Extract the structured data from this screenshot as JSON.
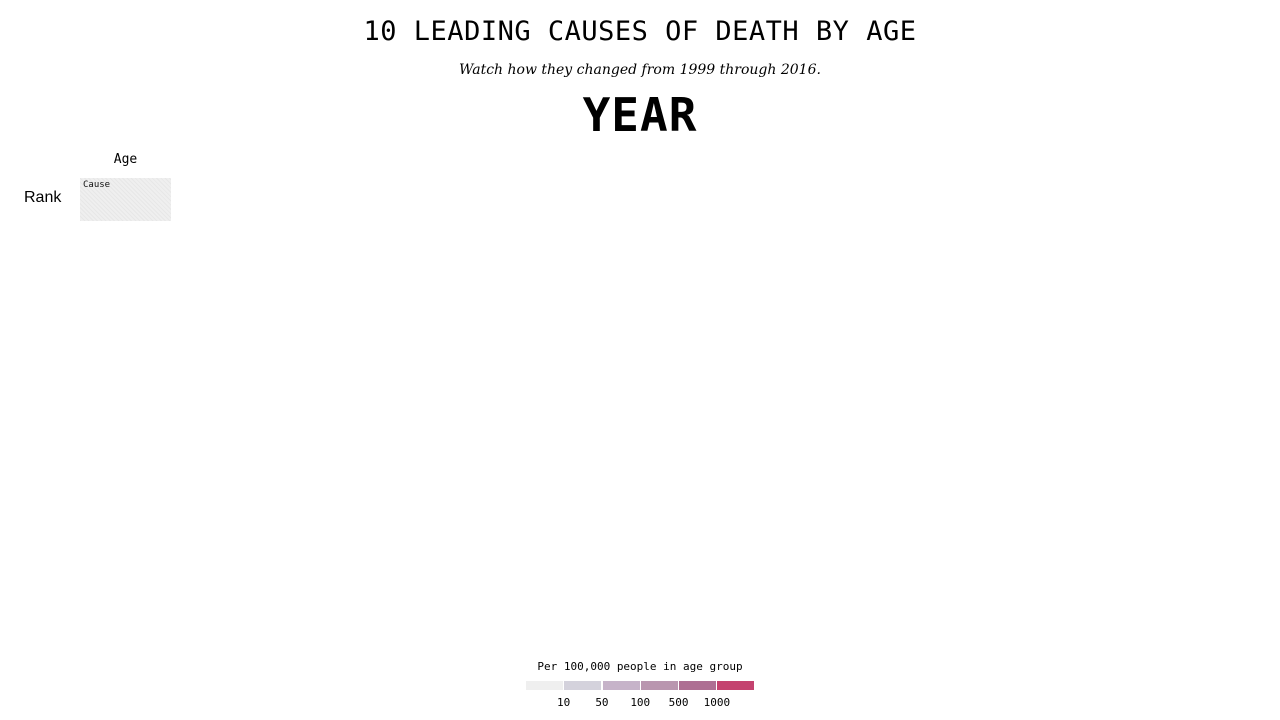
{
  "chart_data": {
    "type": "heatmap",
    "title": "10 LEADING CAUSES OF DEATH BY AGE",
    "subtitle": "Watch how they changed from 1999 through 2016.",
    "year_label": "YEAR",
    "column_header": "Age",
    "row_header": "Rank",
    "cell_placeholder": "Cause",
    "legend": {
      "title": "Per 100,000 people in age group",
      "colors": [
        "#efefef",
        "#d4d2dc",
        "#c6b3c9",
        "#b996af",
        "#ae6f93",
        "#c4426f"
      ],
      "ticks": [
        "10",
        "50",
        "100",
        "500",
        "1000"
      ]
    }
  }
}
